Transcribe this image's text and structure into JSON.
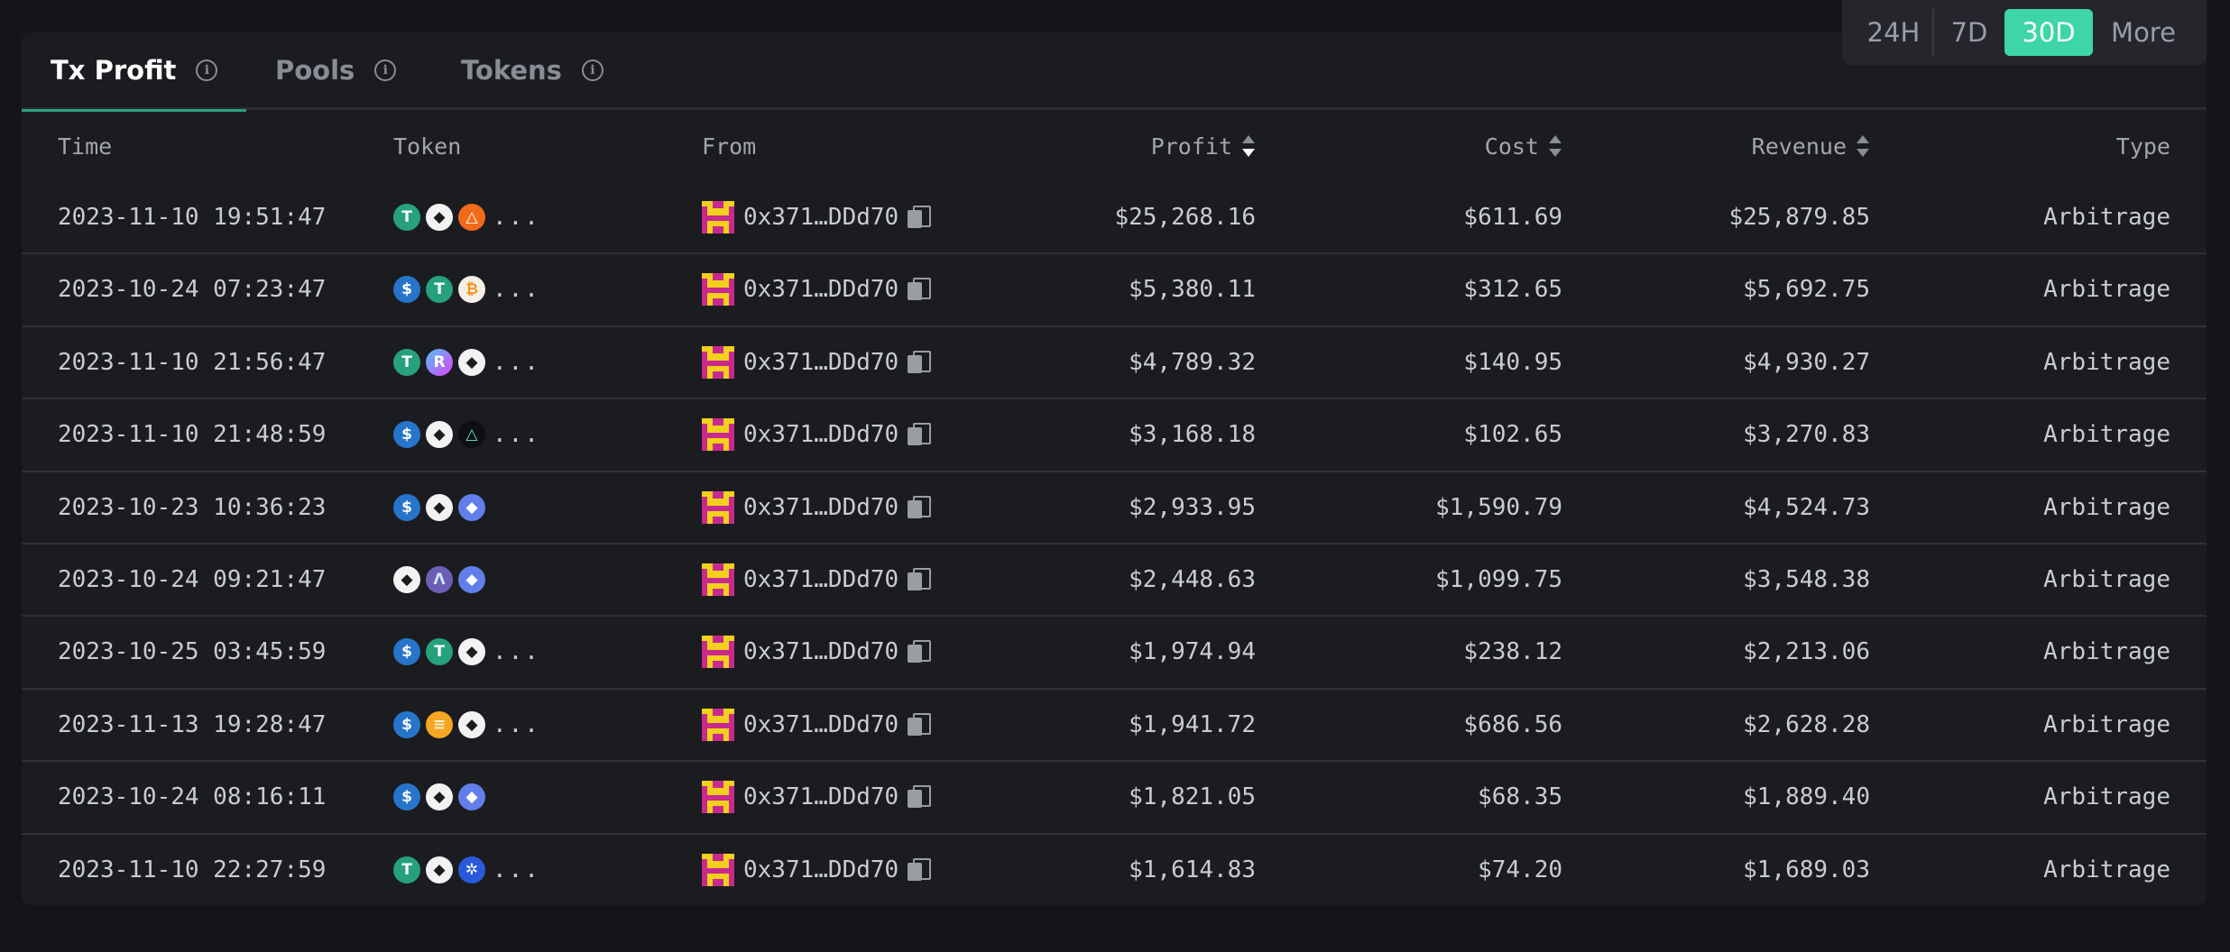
{
  "tabs": [
    {
      "label": "Tx Profit",
      "active": true
    },
    {
      "label": "Pools",
      "active": false
    },
    {
      "label": "Tokens",
      "active": false
    }
  ],
  "range": {
    "options": [
      "24H",
      "7D",
      "30D",
      "More"
    ],
    "selected": "30D",
    "accent": "#3ed6a6"
  },
  "columns": {
    "time": "Time",
    "token": "Token",
    "from": "From",
    "profit": "Profit",
    "cost": "Cost",
    "revenue": "Revenue",
    "type": "Type"
  },
  "rows": [
    {
      "time": "2023-11-10 19:51:47",
      "tokens": [
        "usdt",
        "eth",
        "triangle-orange"
      ],
      "more": "...",
      "from": "0x371…DDd70",
      "profit": "$25,268.16",
      "cost": "$611.69",
      "revenue": "$25,879.85",
      "type": "Arbitrage"
    },
    {
      "time": "2023-10-24 07:23:47",
      "tokens": [
        "usdc",
        "usdt",
        "btc"
      ],
      "more": "...",
      "from": "0x371…DDd70",
      "profit": "$5,380.11",
      "cost": "$312.65",
      "revenue": "$5,692.75",
      "type": "Arbitrage"
    },
    {
      "time": "2023-11-10 21:56:47",
      "tokens": [
        "usdt",
        "gradient",
        "eth"
      ],
      "more": "...",
      "from": "0x371…DDd70",
      "profit": "$4,789.32",
      "cost": "$140.95",
      "revenue": "$4,930.27",
      "type": "Arbitrage"
    },
    {
      "time": "2023-11-10 21:48:59",
      "tokens": [
        "usdc",
        "eth",
        "dark-triangle"
      ],
      "more": "...",
      "from": "0x371…DDd70",
      "profit": "$3,168.18",
      "cost": "$102.65",
      "revenue": "$3,270.83",
      "type": "Arbitrage"
    },
    {
      "time": "2023-10-23 10:36:23",
      "tokens": [
        "usdc",
        "eth",
        "eth-blue"
      ],
      "more": "",
      "from": "0x371…DDd70",
      "profit": "$2,933.95",
      "cost": "$1,590.79",
      "revenue": "$4,524.73",
      "type": "Arbitrage"
    },
    {
      "time": "2023-10-24 09:21:47",
      "tokens": [
        "eth",
        "lambda",
        "eth-blue"
      ],
      "more": "",
      "from": "0x371…DDd70",
      "profit": "$2,448.63",
      "cost": "$1,099.75",
      "revenue": "$3,548.38",
      "type": "Arbitrage"
    },
    {
      "time": "2023-10-25 03:45:59",
      "tokens": [
        "usdc",
        "usdt",
        "eth"
      ],
      "more": "...",
      "from": "0x371…DDd70",
      "profit": "$1,974.94",
      "cost": "$238.12",
      "revenue": "$2,213.06",
      "type": "Arbitrage"
    },
    {
      "time": "2023-11-13 19:28:47",
      "tokens": [
        "usdc",
        "coin-stack",
        "eth"
      ],
      "more": "...",
      "from": "0x371…DDd70",
      "profit": "$1,941.72",
      "cost": "$686.56",
      "revenue": "$2,628.28",
      "type": "Arbitrage"
    },
    {
      "time": "2023-10-24 08:16:11",
      "tokens": [
        "usdc",
        "eth",
        "eth-blue"
      ],
      "more": "",
      "from": "0x371…DDd70",
      "profit": "$1,821.05",
      "cost": "$68.35",
      "revenue": "$1,889.40",
      "type": "Arbitrage"
    },
    {
      "time": "2023-11-10 22:27:59",
      "tokens": [
        "usdt",
        "eth",
        "link-blue"
      ],
      "more": "...",
      "from": "0x371…DDd70",
      "profit": "$1,614.83",
      "cost": "$74.20",
      "revenue": "$1,689.03",
      "type": "Arbitrage"
    }
  ]
}
